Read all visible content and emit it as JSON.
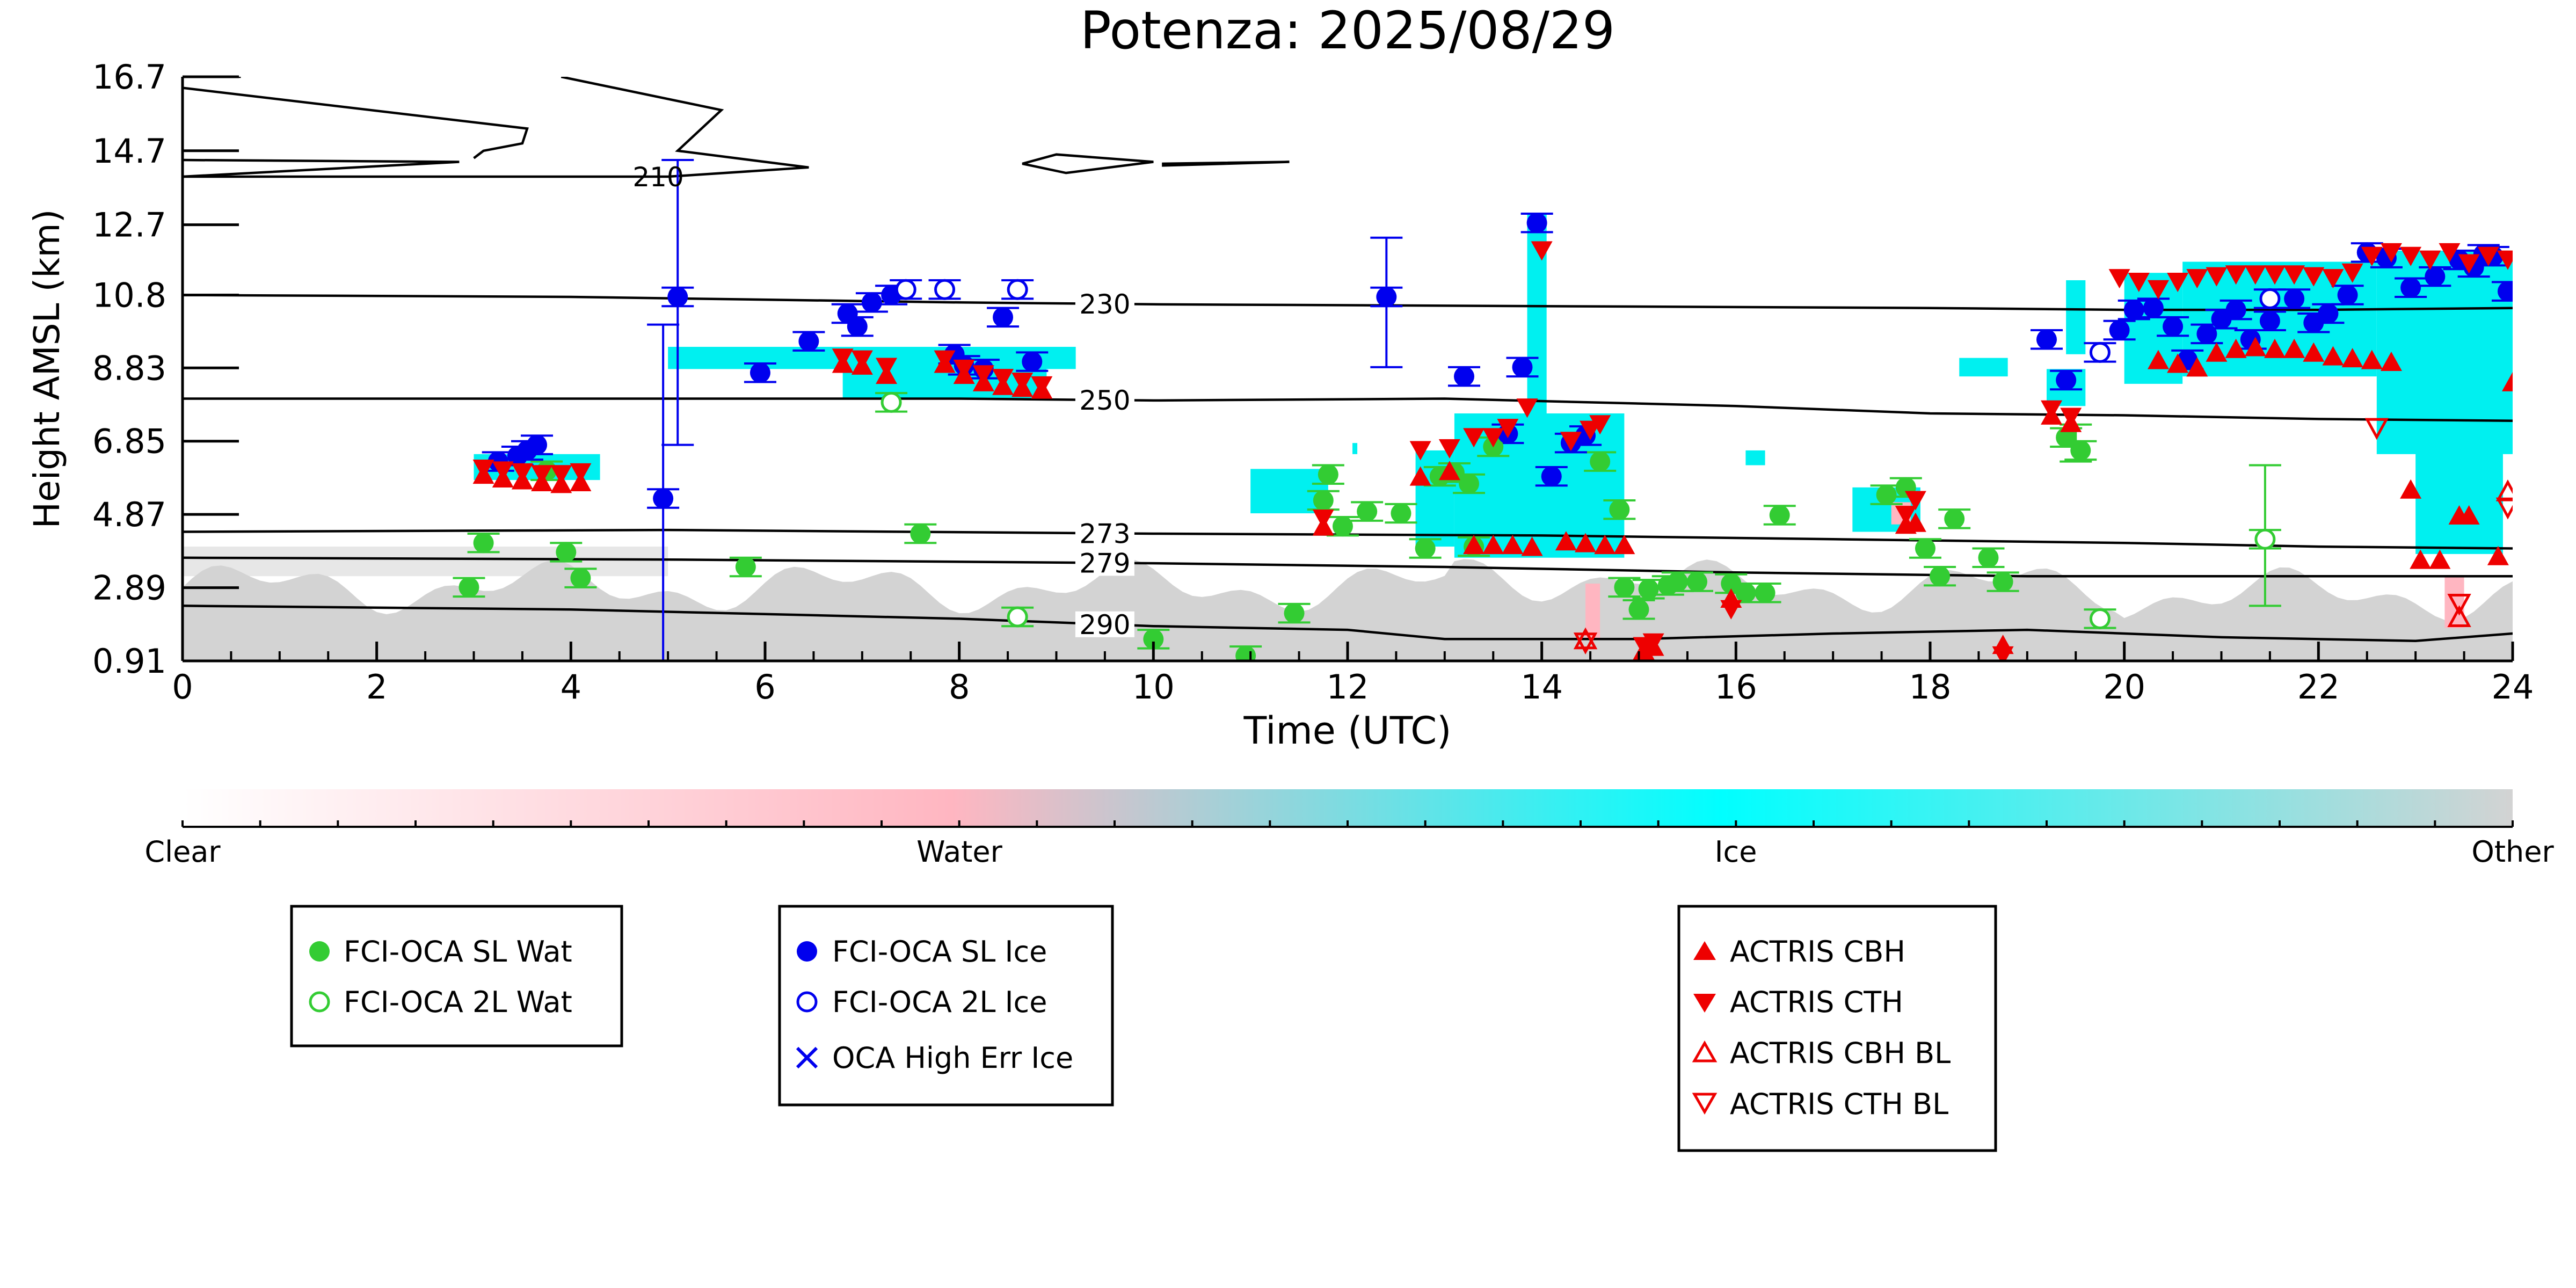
{
  "chart_data": {
    "type": "scatter",
    "title": "Potenza: 2025/08/29",
    "xlabel": "Time (UTC)",
    "ylabel": "Height AMSL (km)",
    "xlim": [
      0,
      24
    ],
    "ylim": [
      0.91,
      16.7
    ],
    "x_ticks": [
      "0",
      "2",
      "4",
      "6",
      "8",
      "10",
      "12",
      "14",
      "16",
      "18",
      "20",
      "22",
      "24"
    ],
    "y_ticks": [
      "0.91",
      "2.89",
      "4.87",
      "6.85",
      "8.83",
      "10.8",
      "12.7",
      "14.7",
      "16.7"
    ],
    "colorbar": {
      "labels": [
        "Clear",
        "Water",
        "Ice",
        "Other"
      ],
      "colors": [
        "#ffffff",
        "#ffb6c1",
        "#00ffff",
        "#d3d3d3"
      ]
    },
    "colors": {
      "water": "#33cc33",
      "ice": "#0000ee",
      "actris": "#ee0000",
      "ice_mask": "#00f0f0",
      "other_mask": "#d3d3d3"
    },
    "contours": [
      {
        "label": "210",
        "level": 210
      },
      {
        "label": "230",
        "level": 230,
        "points": [
          [
            0,
            10.8
          ],
          [
            4,
            10.75
          ],
          [
            8,
            10.6
          ],
          [
            10,
            10.55
          ],
          [
            14,
            10.5
          ],
          [
            18,
            10.45
          ],
          [
            20,
            10.4
          ],
          [
            22,
            10.4
          ],
          [
            24,
            10.45
          ]
        ]
      },
      {
        "label": "250",
        "level": 250,
        "points": [
          [
            0,
            8.0
          ],
          [
            4,
            8.0
          ],
          [
            8,
            8.0
          ],
          [
            10,
            7.95
          ],
          [
            13,
            8.0
          ],
          [
            16,
            7.8
          ],
          [
            18,
            7.6
          ],
          [
            20,
            7.55
          ],
          [
            22,
            7.45
          ],
          [
            24,
            7.4
          ]
        ]
      },
      {
        "label": "273",
        "level": 273,
        "points": [
          [
            0,
            4.4
          ],
          [
            5,
            4.45
          ],
          [
            10,
            4.35
          ],
          [
            14,
            4.3
          ],
          [
            17,
            4.2
          ],
          [
            20,
            4.1
          ],
          [
            22,
            4.0
          ],
          [
            24,
            3.95
          ]
        ]
      },
      {
        "label": "279",
        "level": 279,
        "points": [
          [
            0,
            3.7
          ],
          [
            5,
            3.65
          ],
          [
            10,
            3.55
          ],
          [
            13,
            3.45
          ],
          [
            16,
            3.3
          ],
          [
            19,
            3.2
          ],
          [
            21,
            3.2
          ],
          [
            24,
            3.2
          ]
        ]
      },
      {
        "label": "290",
        "level": 290,
        "points": [
          [
            0,
            2.4
          ],
          [
            4,
            2.3
          ],
          [
            8,
            2.05
          ],
          [
            10,
            1.85
          ],
          [
            12,
            1.75
          ],
          [
            13,
            1.5
          ],
          [
            15,
            1.5
          ],
          [
            17,
            1.65
          ],
          [
            19,
            1.75
          ],
          [
            21,
            1.55
          ],
          [
            23,
            1.45
          ],
          [
            24,
            1.65
          ]
        ]
      }
    ],
    "series": [
      {
        "name": "FCI-OCA SL Wat",
        "marker": "filled-circle",
        "color": "#33cc33",
        "x": [
          2.95,
          3.1,
          3.75,
          3.95,
          4.1,
          5.8,
          7.6,
          10.0,
          10.95,
          11.45,
          11.75,
          11.8,
          11.95,
          12.2,
          12.55,
          12.8,
          12.95,
          13.1,
          13.25,
          13.3,
          13.5,
          14.6,
          14.8,
          14.85,
          15.0,
          15.1,
          15.3,
          15.4,
          15.6,
          15.95,
          16.1,
          16.3,
          16.45,
          17.55,
          17.75,
          17.95,
          18.1,
          18.25,
          18.6,
          18.75,
          19.4,
          19.55
        ],
        "y": [
          2.9,
          4.1,
          6.05,
          3.85,
          3.15,
          3.45,
          4.35,
          1.5,
          1.05,
          2.2,
          5.25,
          5.95,
          4.55,
          4.95,
          4.9,
          3.95,
          5.9,
          6.0,
          5.7,
          4.0,
          6.7,
          6.3,
          5.0,
          2.9,
          2.3,
          2.85,
          2.95,
          3.05,
          3.05,
          3.0,
          2.75,
          2.75,
          4.85,
          5.4,
          5.6,
          3.95,
          3.2,
          4.75,
          3.7,
          3.05,
          6.95,
          6.6
        ]
      },
      {
        "name": "FCI-OCA 2L Wat",
        "marker": "open-circle",
        "color": "#33cc33",
        "x": [
          7.3,
          8.6,
          19.75,
          21.45
        ],
        "y": [
          7.9,
          2.1,
          2.05,
          4.2
        ]
      },
      {
        "name": "FCI-OCA SL Ice",
        "marker": "filled-circle",
        "color": "#0000ee",
        "x": [
          3.25,
          3.45,
          3.55,
          3.65,
          4.95,
          5.1,
          5.95,
          6.45,
          6.85,
          6.95,
          7.1,
          7.3,
          7.95,
          8.05,
          8.25,
          8.45,
          8.75,
          12.4,
          13.2,
          13.65,
          13.8,
          13.95,
          14.1,
          14.3,
          14.45,
          19.2,
          19.4,
          19.95,
          20.1,
          20.3,
          20.5,
          20.65,
          20.85,
          21.0,
          21.15,
          21.3,
          21.5,
          21.75,
          21.95,
          22.1,
          22.3,
          22.5,
          22.7,
          22.95,
          23.2,
          23.45,
          23.6,
          23.7,
          23.8,
          23.95
        ],
        "y": [
          6.3,
          6.45,
          6.6,
          6.75,
          5.3,
          10.75,
          8.7,
          9.55,
          10.3,
          9.95,
          10.6,
          10.8,
          9.2,
          8.9,
          8.8,
          10.2,
          9.0,
          10.75,
          8.6,
          7.05,
          8.85,
          12.75,
          5.9,
          6.8,
          7.0,
          9.6,
          8.5,
          9.85,
          10.4,
          10.45,
          9.95,
          9.05,
          9.75,
          10.15,
          10.4,
          9.6,
          10.1,
          10.7,
          10.05,
          10.3,
          10.8,
          11.95,
          11.8,
          11.0,
          11.3,
          11.75,
          11.55,
          11.9,
          11.85,
          10.9
        ]
      },
      {
        "name": "FCI-OCA 2L Ice",
        "marker": "open-circle",
        "color": "#0000ee",
        "x": [
          7.45,
          7.85,
          8.6,
          19.75,
          21.5
        ],
        "y": [
          10.95,
          10.95,
          10.95,
          9.25,
          10.7
        ]
      },
      {
        "name": "OCA High Err Ice",
        "marker": "x",
        "color": "#0000ee",
        "x": [],
        "y": []
      },
      {
        "name": "ACTRIS CBH",
        "marker": "triangle-up",
        "color": "#ee0000",
        "x": [
          3.1,
          3.3,
          3.5,
          3.7,
          3.9,
          4.1,
          6.8,
          7.0,
          7.25,
          7.85,
          8.05,
          8.25,
          8.45,
          8.65,
          8.85,
          11.75,
          12.75,
          13.05,
          13.3,
          13.5,
          13.7,
          13.9,
          14.25,
          14.45,
          14.65,
          14.85,
          15.05,
          15.15,
          15.95,
          17.75,
          17.85,
          18.75,
          19.25,
          19.45,
          20.35,
          20.55,
          20.75,
          20.95,
          21.15,
          21.35,
          21.55,
          21.75,
          21.95,
          22.15,
          22.35,
          22.55,
          22.75,
          22.95,
          23.05,
          23.25,
          23.45,
          23.55,
          23.85,
          24.0
        ],
        "y": [
          5.9,
          5.8,
          5.75,
          5.7,
          5.65,
          5.7,
          8.9,
          8.85,
          8.6,
          8.9,
          8.6,
          8.4,
          8.3,
          8.25,
          8.2,
          4.5,
          5.85,
          6.0,
          4.0,
          4.0,
          4.0,
          3.95,
          4.1,
          4.05,
          4.0,
          4.0,
          1.15,
          1.25,
          2.55,
          4.55,
          4.6,
          1.3,
          7.5,
          7.3,
          9.0,
          8.9,
          8.8,
          9.2,
          9.3,
          9.35,
          9.3,
          9.3,
          9.2,
          9.1,
          9.05,
          9.0,
          8.95,
          5.5,
          3.6,
          3.6,
          4.8,
          4.8,
          3.7,
          8.4
        ],
        "note": "ACTRIS CBH triangles"
      },
      {
        "name": "ACTRIS CTH",
        "marker": "triangle-down",
        "color": "#ee0000",
        "x": [
          3.1,
          3.3,
          3.5,
          3.7,
          3.9,
          4.1,
          6.8,
          7.0,
          7.25,
          7.85,
          8.05,
          8.25,
          8.45,
          8.65,
          8.85,
          11.75,
          12.75,
          13.05,
          13.3,
          13.5,
          13.65,
          13.85,
          14.0,
          14.3,
          14.5,
          14.6,
          15.05,
          15.15,
          15.95,
          17.75,
          17.85,
          18.75,
          19.25,
          19.45,
          19.95,
          20.15,
          20.35,
          20.55,
          20.75,
          20.95,
          21.15,
          21.35,
          21.55,
          21.75,
          21.95,
          22.15,
          22.35,
          22.55,
          22.75,
          22.95,
          23.15,
          23.35,
          23.55,
          23.75,
          23.95
        ],
        "y": [
          6.15,
          6.1,
          6.05,
          6.0,
          6.0,
          6.05,
          9.15,
          9.1,
          8.9,
          9.1,
          8.85,
          8.7,
          8.6,
          8.5,
          8.4,
          4.8,
          6.65,
          6.7,
          7.0,
          7.0,
          7.25,
          7.8,
          12.05,
          6.9,
          7.2,
          7.35,
          1.35,
          1.45,
          2.35,
          4.9,
          5.3,
          1.1,
          7.75,
          7.55,
          11.3,
          11.2,
          11.0,
          11.2,
          11.3,
          11.35,
          11.4,
          11.4,
          11.4,
          11.4,
          11.35,
          11.3,
          11.45,
          11.9,
          12.0,
          11.9,
          11.8,
          12.0,
          11.7,
          11.9,
          11.8
        ]
      },
      {
        "name": "ACTRIS CBH BL",
        "marker": "open-triangle-up",
        "color": "#ee0000",
        "x": [
          14.45,
          23.45,
          23.95
        ],
        "y": [
          1.45,
          2.05,
          5.45
        ]
      },
      {
        "name": "ACTRIS CTH BL",
        "marker": "open-triangle-down",
        "color": "#ee0000",
        "x": [
          14.45,
          22.6,
          23.45,
          23.95
        ],
        "y": [
          1.45,
          7.25,
          2.5,
          5.1
        ]
      }
    ]
  },
  "legend": {
    "water": [
      "FCI-OCA SL Wat",
      "FCI-OCA 2L Wat"
    ],
    "ice": [
      "FCI-OCA SL Ice",
      "FCI-OCA 2L Ice",
      "OCA High Err Ice"
    ],
    "actris": [
      "ACTRIS CBH",
      "ACTRIS CTH",
      "ACTRIS CBH BL",
      "ACTRIS CTH BL"
    ]
  }
}
